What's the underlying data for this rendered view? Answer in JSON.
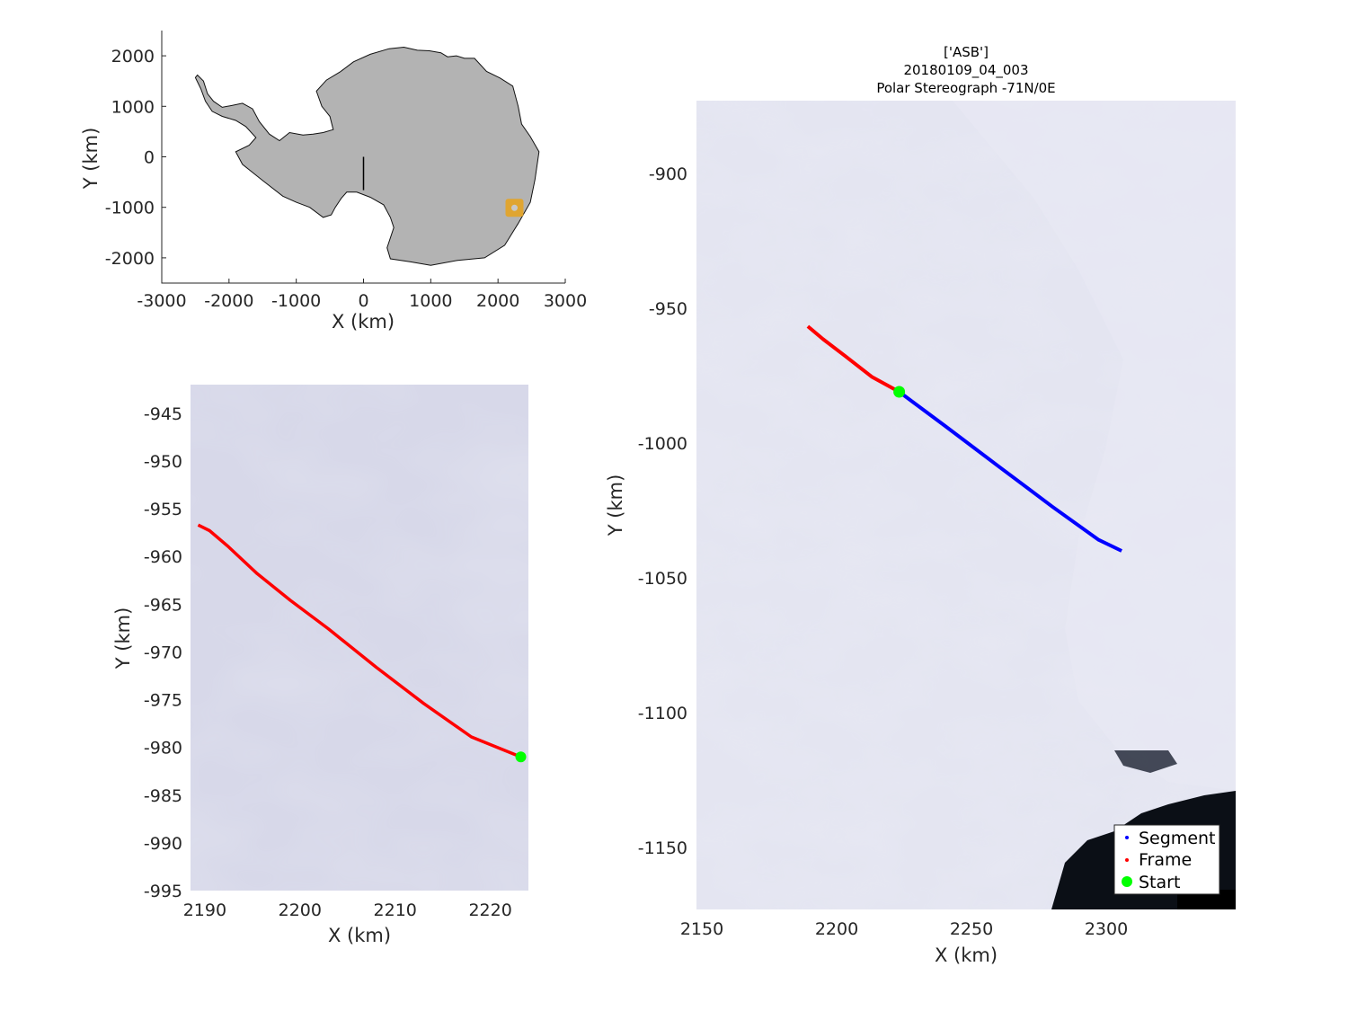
{
  "chart_data": [
    {
      "type": "scatter",
      "name": "overview",
      "xlabel": "X (km)",
      "ylabel": "Y (km)",
      "xlim": [
        -3000,
        3000
      ],
      "ylim": [
        -2500,
        2500
      ],
      "xticks": [
        "-3000",
        "-2000",
        "-1000",
        "0",
        "1000",
        "2000",
        "3000"
      ],
      "yticks": [
        "2000",
        "1000",
        "0",
        "-1000",
        "-2000"
      ],
      "xtick_values": [
        -3000,
        -2000,
        -1000,
        0,
        1000,
        2000,
        3000
      ],
      "ytick_values": [
        2000,
        1000,
        0,
        -1000,
        -2000
      ],
      "outline": [
        [
          -2470,
          1620
        ],
        [
          -2380,
          1500
        ],
        [
          -2320,
          1250
        ],
        [
          -2230,
          1100
        ],
        [
          -2100,
          980
        ],
        [
          -1950,
          1020
        ],
        [
          -1800,
          1060
        ],
        [
          -1650,
          950
        ],
        [
          -1550,
          700
        ],
        [
          -1400,
          450
        ],
        [
          -1250,
          320
        ],
        [
          -1100,
          480
        ],
        [
          -900,
          430
        ],
        [
          -750,
          450
        ],
        [
          -600,
          480
        ],
        [
          -450,
          540
        ],
        [
          -500,
          800
        ],
        [
          -620,
          1000
        ],
        [
          -700,
          1300
        ],
        [
          -550,
          1520
        ],
        [
          -350,
          1680
        ],
        [
          -150,
          1880
        ],
        [
          100,
          2030
        ],
        [
          380,
          2140
        ],
        [
          600,
          2170
        ],
        [
          800,
          2110
        ],
        [
          980,
          2100
        ],
        [
          1150,
          2060
        ],
        [
          1250,
          1980
        ],
        [
          1380,
          2000
        ],
        [
          1500,
          1950
        ],
        [
          1650,
          1950
        ],
        [
          1830,
          1690
        ],
        [
          2030,
          1560
        ],
        [
          2220,
          1400
        ],
        [
          2300,
          1000
        ],
        [
          2350,
          650
        ],
        [
          2480,
          400
        ],
        [
          2610,
          100
        ],
        [
          2550,
          -450
        ],
        [
          2480,
          -900
        ],
        [
          2300,
          -1320
        ],
        [
          2100,
          -1750
        ],
        [
          1800,
          -2000
        ],
        [
          1400,
          -2050
        ],
        [
          1000,
          -2150
        ],
        [
          700,
          -2080
        ],
        [
          400,
          -2020
        ],
        [
          350,
          -1800
        ],
        [
          450,
          -1400
        ],
        [
          400,
          -1200
        ],
        [
          300,
          -950
        ],
        [
          100,
          -800
        ],
        [
          -100,
          -700
        ],
        [
          -250,
          -700
        ],
        [
          -330,
          -820
        ],
        [
          -420,
          -1000
        ],
        [
          -480,
          -1150
        ],
        [
          -600,
          -1200
        ],
        [
          -800,
          -1000
        ],
        [
          -1000,
          -900
        ],
        [
          -1200,
          -780
        ],
        [
          -1500,
          -470
        ],
        [
          -1800,
          -150
        ],
        [
          -1900,
          100
        ],
        [
          -1700,
          230
        ],
        [
          -1600,
          380
        ],
        [
          -1750,
          600
        ],
        [
          -1900,
          720
        ],
        [
          -2100,
          800
        ],
        [
          -2250,
          900
        ],
        [
          -2350,
          1100
        ],
        [
          -2420,
          1350
        ],
        [
          -2500,
          1570
        ]
      ],
      "flight_track": [
        [
          0,
          0
        ],
        [
          0,
          -660
        ]
      ],
      "highlight_point": [
        2245,
        -1010
      ]
    },
    {
      "type": "line",
      "name": "frame-detail",
      "xlabel": "X (km)",
      "ylabel": "Y (km)",
      "xlim": [
        2188.5,
        2224
      ],
      "ylim": [
        -995,
        -942
      ],
      "xticks": [
        "2190",
        "2200",
        "2210",
        "2220"
      ],
      "yticks": [
        "-945",
        "-950",
        "-955",
        "-960",
        "-965",
        "-970",
        "-975",
        "-980",
        "-985",
        "-990",
        "-995"
      ],
      "xtick_values": [
        2190,
        2200,
        2210,
        2220
      ],
      "ytick_values": [
        -945,
        -950,
        -955,
        -960,
        -965,
        -970,
        -975,
        -980,
        -985,
        -990,
        -995
      ],
      "frame_track": {
        "x": [
          2189.3,
          2190.5,
          2192.5,
          2195.5,
          2199,
          2203,
          2208,
          2213,
          2218,
          2223.2
        ],
        "y": [
          -956.7,
          -957.3,
          -959.0,
          -961.8,
          -964.6,
          -967.6,
          -971.6,
          -975.4,
          -978.9,
          -981.0
        ]
      },
      "start": [
        2223.2,
        -981.0
      ]
    },
    {
      "type": "line",
      "name": "segment-map",
      "title_lines": [
        "['ASB']",
        "20180109_04_003",
        "Polar Stereograph -71N/0E"
      ],
      "xlabel": "X (km)",
      "ylabel": "Y (km)",
      "xlim": [
        2148,
        2348
      ],
      "ylim": [
        -1173,
        -873
      ],
      "xticks": [
        "2150",
        "2200",
        "2250",
        "2300"
      ],
      "yticks": [
        "-900",
        "-950",
        "-1000",
        "-1050",
        "-1100",
        "-1150"
      ],
      "xtick_values": [
        2150,
        2200,
        2250,
        2300
      ],
      "ytick_values": [
        -900,
        -950,
        -1000,
        -1050,
        -1100,
        -1150
      ],
      "frame_track": {
        "x": [
          2189.3,
          2195,
          2203,
          2213,
          2223.2
        ],
        "y": [
          -956.7,
          -961.5,
          -967.6,
          -975.4,
          -981.0
        ]
      },
      "segment_track": {
        "x": [
          2223.2,
          2240,
          2260,
          2280,
          2297,
          2305.7
        ],
        "y": [
          -981.0,
          -993.5,
          -1008.6,
          -1023.6,
          -1035.8,
          -1040.0
        ]
      },
      "start": [
        2223.2,
        -981.0
      ],
      "legend": {
        "placement": "bottom-right",
        "items": [
          "Segment",
          "Frame",
          "Start"
        ],
        "colors": [
          "#0000ff",
          "#ff0000",
          "#00ff00"
        ]
      }
    }
  ]
}
